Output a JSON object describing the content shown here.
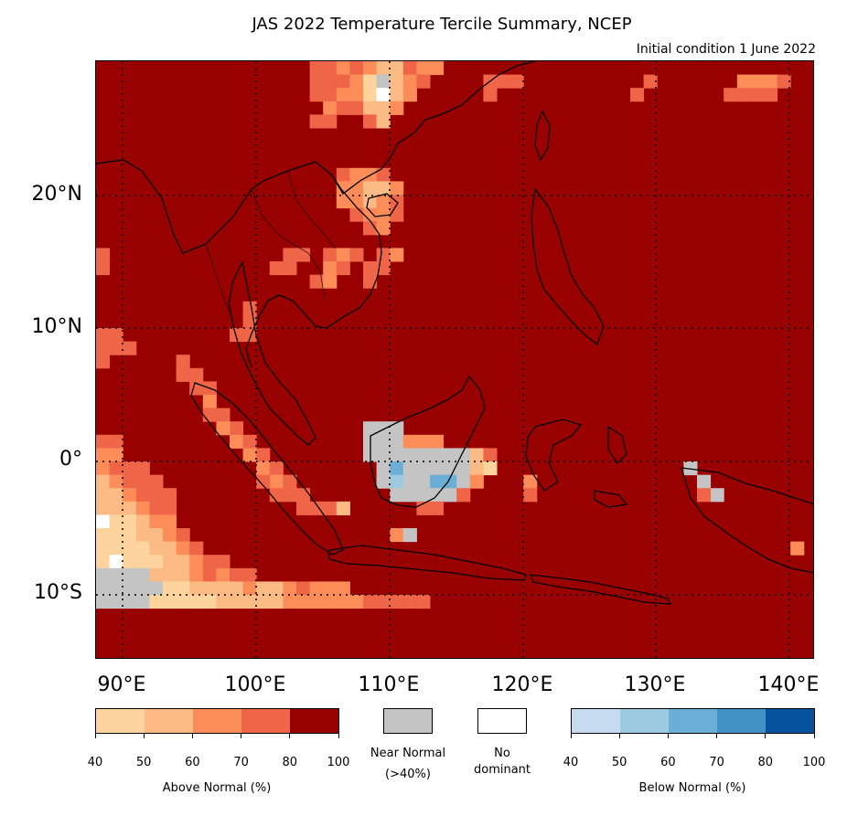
{
  "title": "JAS 2022 Temperature Tercile Summary, NCEP",
  "subtitle": "Initial condition 1 June 2022",
  "lat_labels": [
    "20°N",
    "10°N",
    "0°",
    "10°S"
  ],
  "lon_labels": [
    "90°E",
    "100°E",
    "110°E",
    "120°E",
    "130°E",
    "140°E"
  ],
  "colors": {
    "above": [
      "#fdd49e",
      "#fcbb84",
      "#fc8d59",
      "#ef6548",
      "#990000"
    ],
    "near_normal": "#c4c4c4",
    "no_dominant": "#ffffff",
    "below": [
      "#c6dbef",
      "#9ecae1",
      "#6baed6",
      "#4292c6",
      "#08519c"
    ]
  },
  "legend": {
    "above_title": "Above Normal (%)",
    "below_title": "Below Normal (%)",
    "above_ticks": [
      "40",
      "50",
      "60",
      "70",
      "80",
      "100"
    ],
    "below_ticks": [
      "40",
      "50",
      "60",
      "70",
      "80",
      "100"
    ],
    "near_normal_line1": "Near Normal",
    "near_normal_line2": "(>40%)",
    "no_dominant_line1": "No",
    "no_dominant_line2": "dominant"
  }
}
